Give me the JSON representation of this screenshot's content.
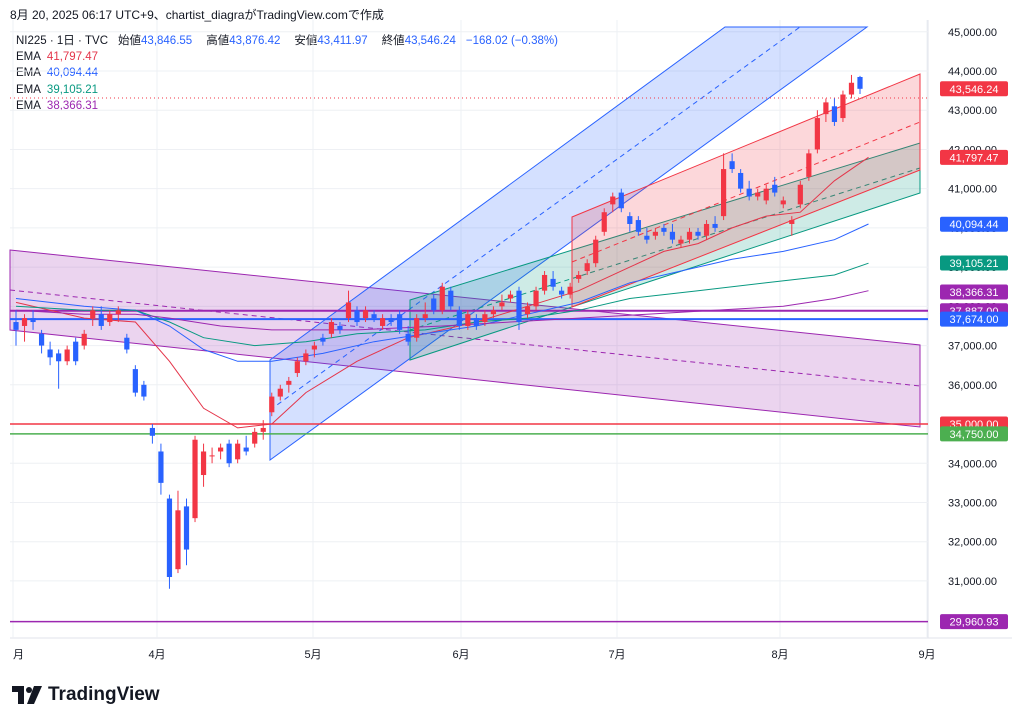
{
  "header": {
    "published": "8月 20, 2025 06:17 UTC+9、chartist_diagraがTradingView.comで作成"
  },
  "legend": {
    "symbol": "NI225 · 1日 · TVC",
    "open_label": "始値",
    "open": "43,846.55",
    "high_label": "高値",
    "high": "43,876.42",
    "low_label": "安値",
    "low": "43,411.97",
    "close_label": "終値",
    "close": "43,546.24",
    "change": "−168.02 (−0.38%)",
    "emas": [
      {
        "label": "EMA",
        "value": "41,797.47",
        "color": "#e4354a"
      },
      {
        "label": "EMA",
        "value": "40,094.44",
        "color": "#2962ff"
      },
      {
        "label": "EMA",
        "value": "39,105.21",
        "color": "#089981"
      },
      {
        "label": "EMA",
        "value": "38,366.31",
        "color": "#9c27b0"
      }
    ]
  },
  "chart_data": {
    "type": "candlestick",
    "x_labels": [
      "月",
      "4月",
      "5月",
      "6月",
      "7月",
      "8月",
      "9月"
    ],
    "y_ticks": [
      31000,
      32000,
      33000,
      34000,
      35000,
      36000,
      37000,
      38000,
      39000,
      40000,
      41000,
      42000,
      43000,
      44000,
      45000
    ],
    "y_tick_labels": [
      "31,000.00",
      "32,000.00",
      "33,000.00",
      "34,000.00",
      "35,000.00",
      "36,000.00",
      "37,000.00",
      "38,000.00",
      "39,000.00",
      "40,000.00",
      "41,000.00",
      "42,000.00",
      "43,000.00",
      "44,000.00",
      "45,000.00"
    ],
    "ylim": [
      29800,
      45300
    ],
    "price_labels": [
      {
        "text": "43,546.24",
        "value": 43546.24,
        "color": "#f23645"
      },
      {
        "text": "41,797.47",
        "value": 41797.47,
        "color": "#f23645"
      },
      {
        "text": "40,094.44",
        "value": 40094.44,
        "color": "#2962ff"
      },
      {
        "text": "39,105.21",
        "value": 39105.21,
        "color": "#089981"
      },
      {
        "text": "38,366.31",
        "value": 38366.31,
        "color": "#9c27b0"
      },
      {
        "text": "37,887.00",
        "value": 37887,
        "color": "#9c27b0"
      },
      {
        "text": "37,674.00",
        "value": 37674,
        "color": "#2962ff"
      },
      {
        "text": "35,000.00",
        "value": 35000,
        "color": "#f23645"
      },
      {
        "text": "34,750.00",
        "value": 34750,
        "color": "#4caf50"
      },
      {
        "text": "29,960.93",
        "value": 29960.93,
        "color": "#9c27b0"
      }
    ],
    "hlines": [
      {
        "value": 37887,
        "color": "#9c27b0",
        "width": 2
      },
      {
        "value": 37674,
        "color": "#2962ff",
        "width": 2
      },
      {
        "value": 35000,
        "color": "#f23645",
        "width": 1.5
      },
      {
        "value": 34750,
        "color": "#4caf50",
        "width": 1.5
      },
      {
        "value": 29960.93,
        "color": "#9c27b0",
        "width": 1.5
      }
    ],
    "colors": {
      "up": "#f23645",
      "down": "#2962ff",
      "grid": "#eef0f4"
    },
    "candles": [
      {
        "o": 37600,
        "h": 37900,
        "l": 37000,
        "c": 37400
      },
      {
        "o": 37500,
        "h": 37800,
        "l": 37100,
        "c": 37700
      },
      {
        "o": 37700,
        "h": 37900,
        "l": 37400,
        "c": 37600
      },
      {
        "o": 37300,
        "h": 37400,
        "l": 36800,
        "c": 37000
      },
      {
        "o": 36900,
        "h": 37100,
        "l": 36500,
        "c": 36700
      },
      {
        "o": 36800,
        "h": 36900,
        "l": 35900,
        "c": 36600
      },
      {
        "o": 36600,
        "h": 37000,
        "l": 36500,
        "c": 36900
      },
      {
        "o": 37100,
        "h": 37200,
        "l": 36500,
        "c": 36600
      },
      {
        "o": 37000,
        "h": 37400,
        "l": 36900,
        "c": 37300
      },
      {
        "o": 37700,
        "h": 38000,
        "l": 37500,
        "c": 37900
      },
      {
        "o": 37800,
        "h": 38000,
        "l": 37400,
        "c": 37500
      },
      {
        "o": 37600,
        "h": 37900,
        "l": 37500,
        "c": 37800
      },
      {
        "o": 37800,
        "h": 38000,
        "l": 37600,
        "c": 37900
      },
      {
        "o": 37200,
        "h": 37300,
        "l": 36800,
        "c": 36900
      },
      {
        "o": 36400,
        "h": 36500,
        "l": 35700,
        "c": 35800
      },
      {
        "o": 36000,
        "h": 36100,
        "l": 35600,
        "c": 35700
      },
      {
        "o": 34900,
        "h": 35000,
        "l": 34500,
        "c": 34700
      },
      {
        "o": 34300,
        "h": 34500,
        "l": 33200,
        "c": 33500
      },
      {
        "o": 33100,
        "h": 33200,
        "l": 30800,
        "c": 31100
      },
      {
        "o": 31300,
        "h": 33300,
        "l": 31200,
        "c": 32800
      },
      {
        "o": 32900,
        "h": 33100,
        "l": 31400,
        "c": 31800
      },
      {
        "o": 32600,
        "h": 34700,
        "l": 32500,
        "c": 34600
      },
      {
        "o": 33700,
        "h": 34500,
        "l": 33400,
        "c": 34300
      },
      {
        "o": 34200,
        "h": 34400,
        "l": 34000,
        "c": 34200
      },
      {
        "o": 34300,
        "h": 34500,
        "l": 34100,
        "c": 34400
      },
      {
        "o": 34500,
        "h": 34600,
        "l": 33900,
        "c": 34000
      },
      {
        "o": 34100,
        "h": 34600,
        "l": 34000,
        "c": 34500
      },
      {
        "o": 34400,
        "h": 34700,
        "l": 34200,
        "c": 34300
      },
      {
        "o": 34500,
        "h": 34900,
        "l": 34400,
        "c": 34800
      },
      {
        "o": 34800,
        "h": 35100,
        "l": 34600,
        "c": 34900
      },
      {
        "o": 35300,
        "h": 35800,
        "l": 35200,
        "c": 35700
      },
      {
        "o": 35700,
        "h": 36000,
        "l": 35600,
        "c": 35900
      },
      {
        "o": 36000,
        "h": 36200,
        "l": 35800,
        "c": 36100
      },
      {
        "o": 36300,
        "h": 36700,
        "l": 36200,
        "c": 36600
      },
      {
        "o": 36600,
        "h": 36900,
        "l": 36500,
        "c": 36800
      },
      {
        "o": 36900,
        "h": 37100,
        "l": 36700,
        "c": 37000
      },
      {
        "o": 37200,
        "h": 37300,
        "l": 37000,
        "c": 37100
      },
      {
        "o": 37300,
        "h": 37700,
        "l": 37200,
        "c": 37600
      },
      {
        "o": 37500,
        "h": 37600,
        "l": 37300,
        "c": 37400
      },
      {
        "o": 37700,
        "h": 38400,
        "l": 37600,
        "c": 38100
      },
      {
        "o": 37900,
        "h": 38000,
        "l": 37500,
        "c": 37600
      },
      {
        "o": 37700,
        "h": 38000,
        "l": 37600,
        "c": 37900
      },
      {
        "o": 37800,
        "h": 37900,
        "l": 37600,
        "c": 37700
      },
      {
        "o": 37500,
        "h": 37800,
        "l": 37400,
        "c": 37700
      },
      {
        "o": 37700,
        "h": 37800,
        "l": 37500,
        "c": 37600
      },
      {
        "o": 37800,
        "h": 37900,
        "l": 37300,
        "c": 37400
      },
      {
        "o": 37300,
        "h": 37500,
        "l": 37000,
        "c": 37100
      },
      {
        "o": 37200,
        "h": 37800,
        "l": 37100,
        "c": 37700
      },
      {
        "o": 37700,
        "h": 38100,
        "l": 37600,
        "c": 37800
      },
      {
        "o": 38200,
        "h": 38300,
        "l": 37800,
        "c": 37900
      },
      {
        "o": 37900,
        "h": 38600,
        "l": 37800,
        "c": 38500
      },
      {
        "o": 38400,
        "h": 38500,
        "l": 37900,
        "c": 38000
      },
      {
        "o": 37900,
        "h": 38000,
        "l": 37400,
        "c": 37500
      },
      {
        "o": 37500,
        "h": 37900,
        "l": 37400,
        "c": 37800
      },
      {
        "o": 37700,
        "h": 37800,
        "l": 37400,
        "c": 37500
      },
      {
        "o": 37600,
        "h": 37900,
        "l": 37500,
        "c": 37800
      },
      {
        "o": 37800,
        "h": 38000,
        "l": 37700,
        "c": 37900
      },
      {
        "o": 38000,
        "h": 38300,
        "l": 37900,
        "c": 38100
      },
      {
        "o": 38200,
        "h": 38400,
        "l": 38100,
        "c": 38300
      },
      {
        "o": 38400,
        "h": 38500,
        "l": 37400,
        "c": 37600
      },
      {
        "o": 37800,
        "h": 38100,
        "l": 37700,
        "c": 38000
      },
      {
        "o": 38000,
        "h": 38500,
        "l": 37900,
        "c": 38400
      },
      {
        "o": 38400,
        "h": 38900,
        "l": 38300,
        "c": 38800
      },
      {
        "o": 38700,
        "h": 38900,
        "l": 38400,
        "c": 38500
      },
      {
        "o": 38400,
        "h": 38500,
        "l": 38200,
        "c": 38300
      },
      {
        "o": 38300,
        "h": 38600,
        "l": 38200,
        "c": 38500
      },
      {
        "o": 38700,
        "h": 38900,
        "l": 38600,
        "c": 38800
      },
      {
        "o": 38900,
        "h": 39200,
        "l": 38800,
        "c": 39100
      },
      {
        "o": 39100,
        "h": 39800,
        "l": 39000,
        "c": 39700
      },
      {
        "o": 39900,
        "h": 40500,
        "l": 39800,
        "c": 40400
      },
      {
        "o": 40600,
        "h": 40900,
        "l": 40400,
        "c": 40800
      },
      {
        "o": 40900,
        "h": 41000,
        "l": 40400,
        "c": 40500
      },
      {
        "o": 40300,
        "h": 40400,
        "l": 39900,
        "c": 40100
      },
      {
        "o": 40200,
        "h": 40300,
        "l": 39800,
        "c": 39900
      },
      {
        "o": 39800,
        "h": 40000,
        "l": 39600,
        "c": 39700
      },
      {
        "o": 39800,
        "h": 40000,
        "l": 39700,
        "c": 39900
      },
      {
        "o": 40000,
        "h": 40100,
        "l": 39800,
        "c": 39900
      },
      {
        "o": 39900,
        "h": 40100,
        "l": 39600,
        "c": 39700
      },
      {
        "o": 39600,
        "h": 39800,
        "l": 39500,
        "c": 39700
      },
      {
        "o": 39700,
        "h": 40000,
        "l": 39600,
        "c": 39900
      },
      {
        "o": 39900,
        "h": 40000,
        "l": 39700,
        "c": 39800
      },
      {
        "o": 39800,
        "h": 40200,
        "l": 39700,
        "c": 40100
      },
      {
        "o": 40100,
        "h": 40300,
        "l": 39900,
        "c": 40000
      },
      {
        "o": 40300,
        "h": 41900,
        "l": 40200,
        "c": 41500
      },
      {
        "o": 41700,
        "h": 41900,
        "l": 41400,
        "c": 41500
      },
      {
        "o": 41400,
        "h": 41500,
        "l": 40900,
        "c": 41000
      },
      {
        "o": 41000,
        "h": 41200,
        "l": 40700,
        "c": 40800
      },
      {
        "o": 40800,
        "h": 41000,
        "l": 40700,
        "c": 40900
      },
      {
        "o": 40700,
        "h": 41100,
        "l": 40600,
        "c": 41000
      },
      {
        "o": 41100,
        "h": 41300,
        "l": 40800,
        "c": 40900
      },
      {
        "o": 40600,
        "h": 40800,
        "l": 40500,
        "c": 40700
      },
      {
        "o": 40100,
        "h": 40300,
        "l": 39800,
        "c": 40200
      },
      {
        "o": 40600,
        "h": 41200,
        "l": 40500,
        "c": 41100
      },
      {
        "o": 41300,
        "h": 42000,
        "l": 41200,
        "c": 41900
      },
      {
        "o": 42000,
        "h": 43000,
        "l": 41900,
        "c": 42800
      },
      {
        "o": 42900,
        "h": 43300,
        "l": 42700,
        "c": 43200
      },
      {
        "o": 43100,
        "h": 43300,
        "l": 42600,
        "c": 42700
      },
      {
        "o": 42800,
        "h": 43500,
        "l": 42700,
        "c": 43400
      },
      {
        "o": 43400,
        "h": 43900,
        "l": 43300,
        "c": 43700
      },
      {
        "o": 43847,
        "h": 43876,
        "l": 43412,
        "c": 43546
      }
    ],
    "emas": [
      {
        "color": "#e4354a",
        "values": [
          [
            0,
            38100
          ],
          [
            8,
            37700
          ],
          [
            14,
            37600
          ],
          [
            18,
            36600
          ],
          [
            22,
            35400
          ],
          [
            26,
            34900
          ],
          [
            30,
            35000
          ],
          [
            34,
            35800
          ],
          [
            40,
            36600
          ],
          [
            46,
            37200
          ],
          [
            54,
            37600
          ],
          [
            60,
            38000
          ],
          [
            66,
            38400
          ],
          [
            72,
            39000
          ],
          [
            76,
            39400
          ],
          [
            80,
            39600
          ],
          [
            84,
            40000
          ],
          [
            88,
            40300
          ],
          [
            92,
            40400
          ],
          [
            96,
            41200
          ],
          [
            100,
            41800
          ]
        ]
      },
      {
        "color": "#2962ff",
        "values": [
          [
            0,
            38200
          ],
          [
            8,
            38000
          ],
          [
            14,
            37900
          ],
          [
            18,
            37500
          ],
          [
            22,
            36900
          ],
          [
            26,
            36600
          ],
          [
            30,
            36600
          ],
          [
            36,
            36800
          ],
          [
            42,
            37100
          ],
          [
            48,
            37300
          ],
          [
            54,
            37500
          ],
          [
            60,
            37800
          ],
          [
            66,
            38100
          ],
          [
            72,
            38600
          ],
          [
            78,
            38900
          ],
          [
            84,
            39200
          ],
          [
            90,
            39400
          ],
          [
            96,
            39700
          ],
          [
            100,
            40100
          ]
        ]
      },
      {
        "color": "#089981",
        "values": [
          [
            0,
            38000
          ],
          [
            8,
            37900
          ],
          [
            14,
            37900
          ],
          [
            18,
            37600
          ],
          [
            22,
            37200
          ],
          [
            28,
            37000
          ],
          [
            34,
            37100
          ],
          [
            40,
            37300
          ],
          [
            48,
            37400
          ],
          [
            54,
            37600
          ],
          [
            60,
            37700
          ],
          [
            66,
            37900
          ],
          [
            72,
            38200
          ],
          [
            80,
            38400
          ],
          [
            88,
            38600
          ],
          [
            96,
            38800
          ],
          [
            100,
            39100
          ]
        ]
      },
      {
        "color": "#9c27b0",
        "values": [
          [
            0,
            37900
          ],
          [
            8,
            37800
          ],
          [
            14,
            37800
          ],
          [
            18,
            37700
          ],
          [
            24,
            37500
          ],
          [
            30,
            37400
          ],
          [
            40,
            37400
          ],
          [
            50,
            37500
          ],
          [
            58,
            37600
          ],
          [
            66,
            37700
          ],
          [
            74,
            37800
          ],
          [
            82,
            37900
          ],
          [
            90,
            38000
          ],
          [
            96,
            38200
          ],
          [
            100,
            38400
          ]
        ]
      }
    ]
  },
  "branding": {
    "logo_text": "TradingView"
  }
}
